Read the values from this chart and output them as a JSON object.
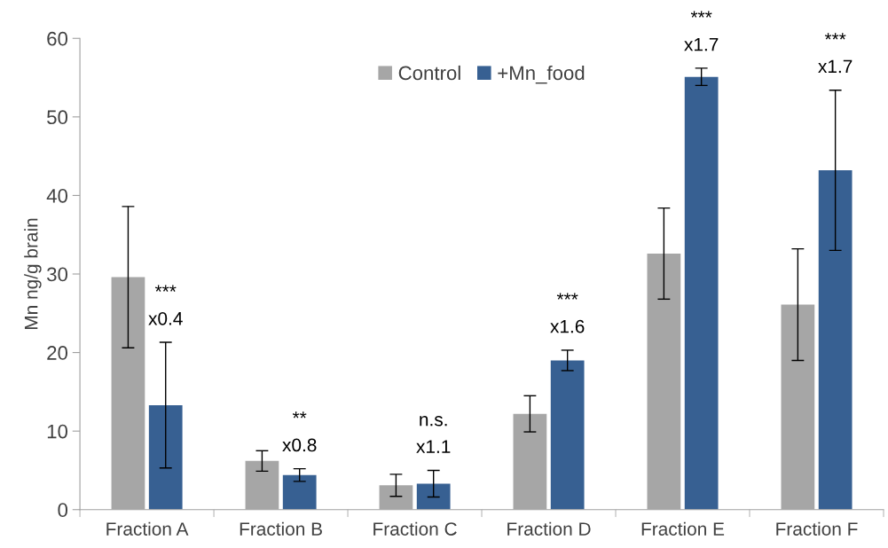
{
  "chart_data": {
    "type": "bar",
    "ylabel": "Mn ng/g brain",
    "categories": [
      "Fraction A",
      "Fraction B",
      "Fraction C",
      "Fraction D",
      "Fraction E",
      "Fraction F"
    ],
    "series": [
      {
        "name": "Control",
        "color": "#a6a6a6",
        "values": [
          29.6,
          6.2,
          3.1,
          12.2,
          32.6,
          26.1
        ],
        "errors": [
          9,
          1.3,
          1.4,
          2.3,
          5.8,
          7.1
        ]
      },
      {
        "name": "+Mn_food",
        "color": "#376092",
        "values": [
          13.3,
          4.4,
          3.3,
          19.0,
          55.1,
          43.2
        ],
        "errors": [
          8,
          0.8,
          1.7,
          1.3,
          1.1,
          10.2
        ]
      }
    ],
    "ylim": [
      0,
      60
    ],
    "yticks": [
      0,
      10,
      20,
      30,
      40,
      50,
      60
    ],
    "grid": false,
    "legend": "top",
    "annotations": [
      "***",
      "x0.4",
      "**",
      "x0.8",
      "n.s.",
      "x1.1",
      "***",
      "x1.6",
      "***",
      "x1.7",
      "***",
      "x1.7"
    ]
  }
}
